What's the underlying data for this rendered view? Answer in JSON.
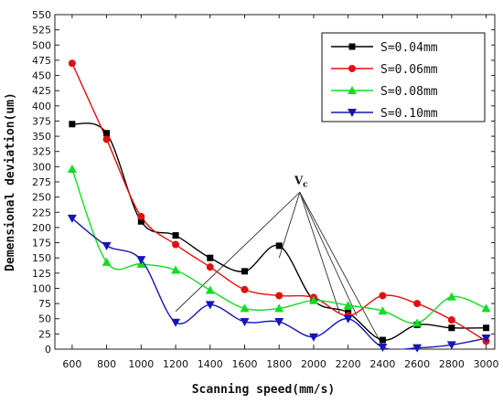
{
  "chart_data": {
    "type": "line",
    "xlabel": "Scanning speed(mm/s)",
    "ylabel": "Demensional deviation(um)",
    "xlim": [
      500,
      3050
    ],
    "ylim": [
      0,
      550
    ],
    "x_ticks": [
      600,
      800,
      1000,
      1200,
      1400,
      1600,
      1800,
      2000,
      2200,
      2400,
      2600,
      2800,
      3000
    ],
    "y_ticks": [
      0,
      25,
      50,
      75,
      100,
      125,
      150,
      175,
      200,
      225,
      250,
      275,
      300,
      325,
      350,
      375,
      400,
      425,
      450,
      475,
      500,
      525,
      550
    ],
    "legend_position": "top-right",
    "grid": false,
    "annotation": {
      "label": "V",
      "label_sub": "c",
      "apex": [
        1920,
        258
      ],
      "targets": [
        [
          1200,
          62
        ],
        [
          1800,
          150
        ],
        [
          2150,
          60
        ],
        [
          2250,
          55
        ],
        [
          2400,
          5
        ]
      ]
    },
    "series": [
      {
        "name": "S=0.04mm",
        "color": "#000000",
        "marker": "square",
        "x": [
          600,
          800,
          1000,
          1200,
          1400,
          1600,
          1800,
          2000,
          2200,
          2400,
          2600,
          2800,
          3000
        ],
        "y": [
          370,
          355,
          210,
          187,
          150,
          128,
          170,
          80,
          60,
          15,
          40,
          35,
          35
        ]
      },
      {
        "name": "S=0.06mm",
        "color": "#e01010",
        "marker": "circle",
        "x": [
          600,
          800,
          1000,
          1200,
          1400,
          1600,
          1800,
          2000,
          2200,
          2400,
          2600,
          2800,
          3000
        ],
        "y": [
          470,
          345,
          218,
          172,
          135,
          98,
          88,
          85,
          55,
          88,
          75,
          48,
          13
        ]
      },
      {
        "name": "S=0.08mm",
        "color": "#11dd22",
        "marker": "triangle-up",
        "x": [
          600,
          800,
          1000,
          1200,
          1400,
          1600,
          1800,
          2000,
          2200,
          2400,
          2600,
          2800,
          3000
        ],
        "y": [
          296,
          143,
          140,
          130,
          97,
          67,
          67,
          80,
          72,
          63,
          43,
          86,
          67
        ]
      },
      {
        "name": "S=0.10mm",
        "color": "#1515b5",
        "marker": "triangle-down",
        "x": [
          600,
          800,
          1000,
          1200,
          1400,
          1600,
          1800,
          2000,
          2200,
          2400,
          2600,
          2800,
          3000
        ],
        "y": [
          215,
          170,
          147,
          44,
          73,
          45,
          45,
          20,
          50,
          3,
          2,
          7,
          18
        ]
      }
    ]
  }
}
